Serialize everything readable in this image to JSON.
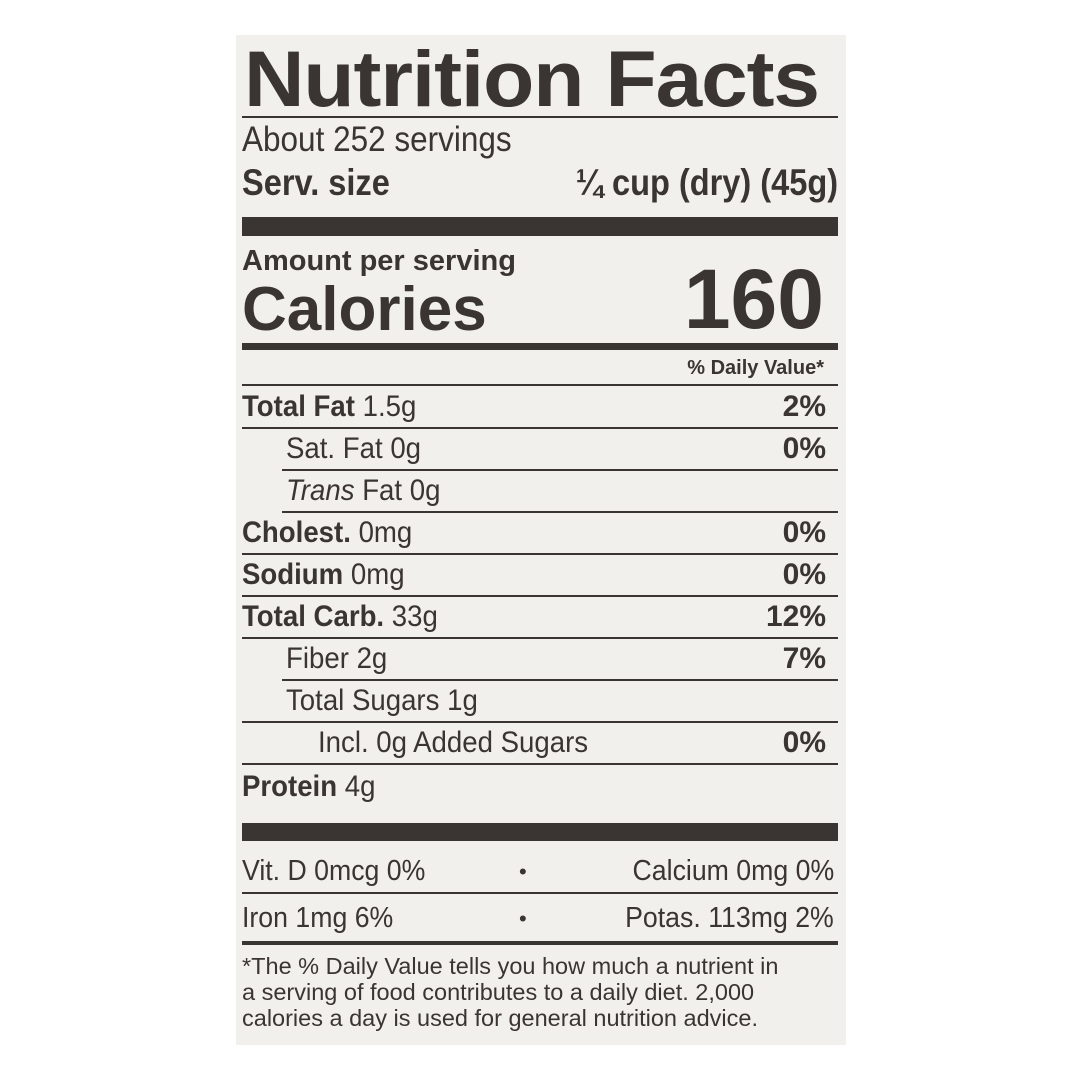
{
  "title": "Nutrition Facts",
  "servings": "About 252 servings",
  "serving_size": {
    "label": "Serv. size",
    "value": "¼ cup (dry) (45g)"
  },
  "amount_per_serving": "Amount per serving",
  "calories": {
    "label": "Calories",
    "value": "160"
  },
  "daily_value_header": "% Daily Value*",
  "nutrients": [
    {
      "name": "Total Fat",
      "amount": "1.5g",
      "dv": "2%"
    },
    {
      "name": "Sat. Fat",
      "amount": "0g",
      "dv": "0%"
    },
    {
      "name": "Trans",
      "amount": "Fat 0g",
      "dv": ""
    },
    {
      "name": "Cholest.",
      "amount": "0mg",
      "dv": "0%"
    },
    {
      "name": "Sodium",
      "amount": "0mg",
      "dv": "0%"
    },
    {
      "name": "Total Carb.",
      "amount": "33g",
      "dv": "12%"
    },
    {
      "name": "Fiber",
      "amount": "2g",
      "dv": "7%"
    },
    {
      "name": "Total Sugars",
      "amount": "1g",
      "dv": ""
    },
    {
      "name": "Incl. 0g Added Sugars",
      "amount": "",
      "dv": "0%"
    },
    {
      "name": "Protein",
      "amount": "4g",
      "dv": ""
    }
  ],
  "vitamins": [
    {
      "left": "Vit. D 0mcg 0%",
      "right": "Calcium 0mg 0%"
    },
    {
      "left": "Iron 1mg 6%",
      "right": "Potas. 113mg 2%"
    }
  ],
  "separator": "•",
  "footnote": [
    "*The % Daily Value tells you how much a nutrient in",
    "a serving of food contributes to a daily diet. 2,000",
    "calories a day is used for general nutrition advice."
  ]
}
